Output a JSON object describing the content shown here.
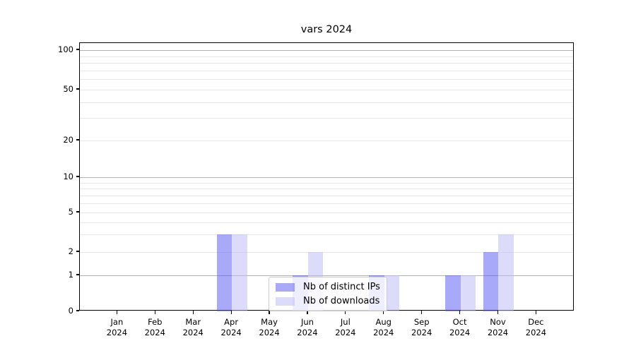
{
  "title": "vars 2024",
  "chart_data": {
    "type": "bar",
    "title": "vars 2024",
    "categories": [
      "Jan",
      "Feb",
      "Mar",
      "Apr",
      "May",
      "Jun",
      "Jul",
      "Aug",
      "Sep",
      "Oct",
      "Nov",
      "Dec"
    ],
    "category_year": "2024",
    "series": [
      {
        "name": "Nb of distinct IPs",
        "color": "#5353f5",
        "alpha": 0.5,
        "values": [
          0,
          0,
          0,
          3,
          0,
          1,
          0,
          1,
          0,
          1,
          2,
          0
        ]
      },
      {
        "name": "Nb of downloads",
        "color": "#b9b9f5",
        "alpha": 0.5,
        "values": [
          0,
          0,
          0,
          3,
          0,
          2,
          0,
          1,
          0,
          1,
          3,
          0
        ]
      }
    ],
    "xlabel": "",
    "ylabel": "",
    "yscale": "symlog",
    "ylim": [
      0,
      115
    ],
    "y_ticks": [
      0,
      1,
      2,
      5,
      10,
      20,
      50,
      100
    ],
    "y_major_gridlines": [
      1,
      10,
      100
    ],
    "y_minor_gridlines": [
      2,
      3,
      4,
      5,
      6,
      7,
      8,
      9,
      20,
      30,
      40,
      50,
      60,
      70,
      80,
      90
    ],
    "grid": true,
    "legend_position": "lower center",
    "colors": {
      "axis": "#000000",
      "text": "#000000",
      "major_grid": "#b2b2b2",
      "minor_grid": "#e7e7e7",
      "legend_border": "#cccccc"
    }
  }
}
